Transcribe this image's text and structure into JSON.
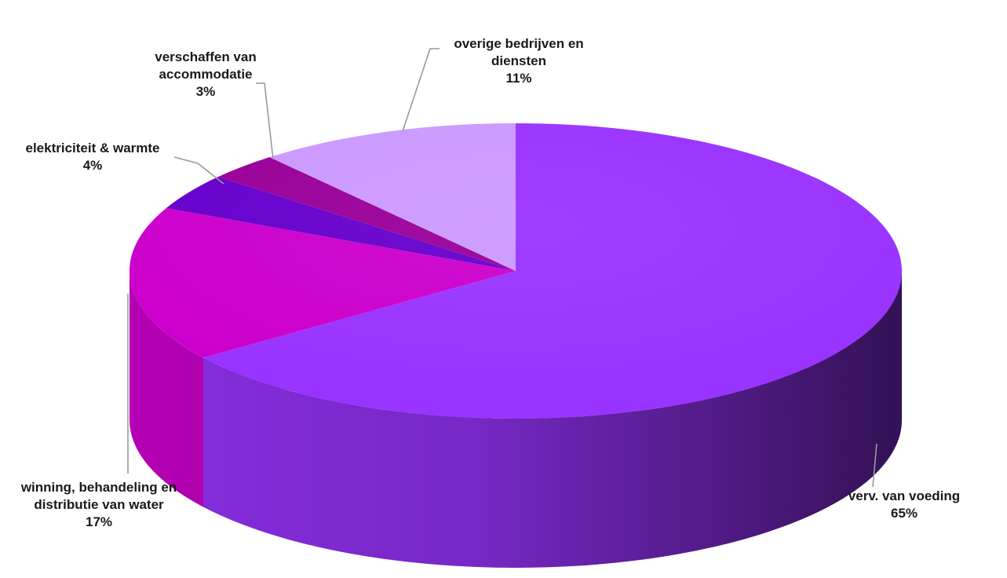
{
  "chart_data": {
    "type": "pie",
    "style": "3d",
    "title": "",
    "legend": "none",
    "slices": [
      {
        "name_lines": [
          "verv. van voeding"
        ],
        "value": 65,
        "label": "65%",
        "color": "#9933ff"
      },
      {
        "name_lines": [
          "winning, behandeling en",
          "distributie van water"
        ],
        "value": 17,
        "label": "17%",
        "color": "#cc00cc"
      },
      {
        "name_lines": [
          "elektriciteit & warmte"
        ],
        "value": 4,
        "label": "4%",
        "color": "#6600cc"
      },
      {
        "name_lines": [
          "verschaffen van",
          "accommodatie"
        ],
        "value": 3,
        "label": "3%",
        "color": "#990099"
      },
      {
        "name_lines": [
          "overige bedrijven en",
          "diensten"
        ],
        "value": 11,
        "label": "11%",
        "color": "#cc99ff"
      }
    ]
  }
}
